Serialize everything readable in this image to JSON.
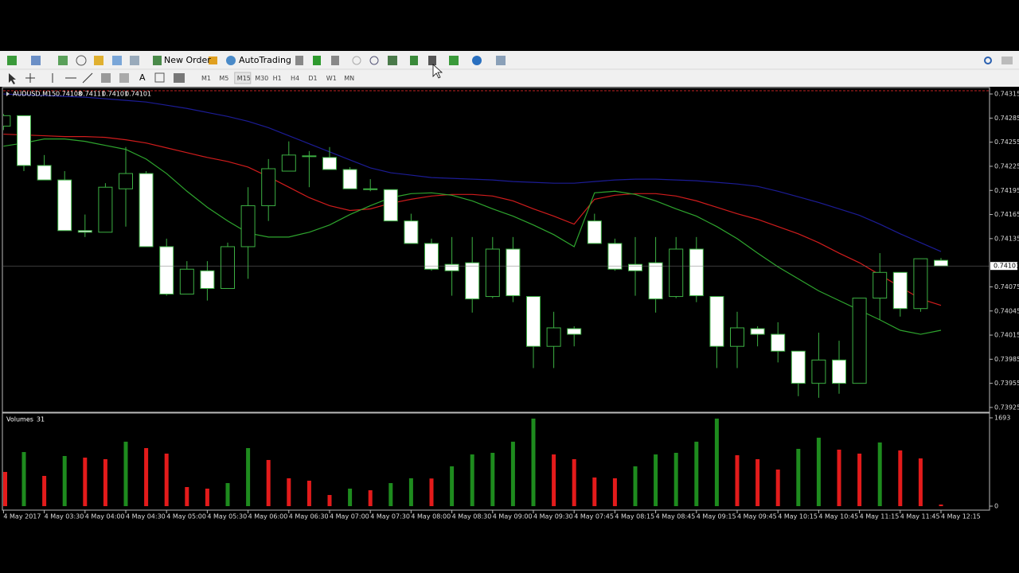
{
  "toolbar": {
    "new_order": "New Order",
    "auto_trading": "AutoTrading",
    "timeframes": [
      "M1",
      "M5",
      "M15",
      "M30",
      "H1",
      "H4",
      "D1",
      "W1",
      "MN"
    ]
  },
  "chart_data": [
    {
      "type": "candlestick",
      "symbol": "AUDUSD,M15",
      "categories": [
        "4 May 2017",
        null,
        "4 May 03:30",
        null,
        "4 May 04:00",
        null,
        "4 May 04:30",
        null,
        "4 May 05:00",
        null,
        "4 May 05:30",
        null,
        "4 May 06:00",
        null,
        "4 May 06:30",
        null,
        "4 May 07:00",
        null,
        "4 May 07:30",
        null,
        "4 May 08:00",
        null,
        "4 May 08:30",
        null,
        "4 May 09:00",
        null,
        "4 May 09:30",
        null,
        "4 May 07:45",
        null,
        "4 May 08:15",
        null,
        "4 May 08:45",
        null,
        "4 May 09:15",
        null,
        "4 May 09:45",
        null,
        "4 May 10:15",
        null,
        "4 May 10:45",
        null,
        "4 May 11:15",
        null,
        "4 May 11:45",
        null,
        "4 May 12:15"
      ],
      "open": [
        0.74275,
        0.74288,
        0.74226,
        0.74208,
        0.74145,
        0.74143,
        0.74197,
        0.74216,
        0.74125,
        0.74066,
        0.74095,
        0.74073,
        0.74125,
        0.74176,
        0.74219,
        0.74238,
        0.74236,
        0.74221,
        0.74197,
        0.74196,
        0.74157,
        0.74129,
        0.74103,
        0.74105,
        0.74063,
        0.74122,
        0.74063,
        0.74001,
        0.74023,
        0.74157,
        0.74129,
        0.74103,
        0.74105,
        0.74063,
        0.74122,
        0.74063,
        0.74001,
        0.74023,
        0.74016,
        0.73995,
        0.73955,
        0.73984,
        0.73955,
        0.74061,
        0.74093,
        0.74048,
        0.74108
      ],
      "high": [
        0.7429,
        0.74288,
        0.74239,
        0.74219,
        0.74165,
        0.74204,
        0.74249,
        0.74219,
        0.74135,
        0.74107,
        0.74107,
        0.7413,
        0.74199,
        0.74234,
        0.74256,
        0.74244,
        0.74249,
        0.74224,
        0.74209,
        0.74196,
        0.74166,
        0.74135,
        0.74137,
        0.74137,
        0.74137,
        0.74137,
        0.74063,
        0.74044,
        0.74026,
        0.74166,
        0.74135,
        0.74137,
        0.74137,
        0.74137,
        0.74137,
        0.74063,
        0.74044,
        0.74026,
        0.74031,
        0.73995,
        0.74018,
        0.74008,
        0.74061,
        0.74117,
        0.74093,
        0.7411,
        0.74111
      ],
      "low": [
        0.7427,
        0.74219,
        0.74208,
        0.74145,
        0.74137,
        0.74143,
        0.7415,
        0.74125,
        0.74064,
        0.74066,
        0.74058,
        0.74073,
        0.74085,
        0.74157,
        0.74219,
        0.74199,
        0.74221,
        0.74197,
        0.74194,
        0.74157,
        0.74129,
        0.74095,
        0.74064,
        0.74043,
        0.74061,
        0.74056,
        0.73974,
        0.73974,
        0.74001,
        0.74129,
        0.74095,
        0.74064,
        0.74043,
        0.74061,
        0.74056,
        0.73974,
        0.73974,
        0.74001,
        0.73981,
        0.73939,
        0.73937,
        0.73942,
        0.73955,
        0.74034,
        0.74038,
        0.74044,
        0.74101
      ],
      "close": [
        0.74288,
        0.74226,
        0.74208,
        0.74145,
        0.74143,
        0.74199,
        0.74216,
        0.74125,
        0.74066,
        0.74097,
        0.74073,
        0.74125,
        0.74176,
        0.74222,
        0.74239,
        0.74237,
        0.74221,
        0.74197,
        0.74196,
        0.74157,
        0.74129,
        0.74097,
        0.74095,
        0.7406,
        0.74122,
        0.74064,
        0.74001,
        0.74024,
        0.74016,
        0.74129,
        0.74097,
        0.74095,
        0.7406,
        0.74122,
        0.74064,
        0.74001,
        0.74024,
        0.74016,
        0.73995,
        0.73955,
        0.73984,
        0.73955,
        0.74061,
        0.74093,
        0.74048,
        0.7411,
        0.74101
      ],
      "up_color": "#000000",
      "down_color": "#ffffff",
      "outline_color": "#3cb043",
      "lines": [
        {
          "color": "#1c1c96",
          "values": [
            0.74315,
            0.74314,
            0.74313,
            0.74312,
            0.74311,
            0.74309,
            0.74307,
            0.74305,
            0.74301,
            0.74297,
            0.74292,
            0.74287,
            0.74281,
            0.74273,
            0.74263,
            0.74253,
            0.74243,
            0.74233,
            0.74223,
            0.74217,
            0.74214,
            0.74211,
            0.7421,
            0.74209,
            0.74208,
            0.74206,
            0.74205,
            0.74204,
            0.74204,
            0.74206,
            0.74208,
            0.74209,
            0.74209,
            0.74208,
            0.74207,
            0.74205,
            0.74203,
            0.742,
            0.74194,
            0.74187,
            0.7418,
            0.74172,
            0.74164,
            0.74153,
            0.74141,
            0.7413,
            0.74119
          ]
        },
        {
          "color": "#d01c1c",
          "values": [
            0.74265,
            0.74264,
            0.74263,
            0.74262,
            0.74262,
            0.74261,
            0.74258,
            0.74254,
            0.74248,
            0.74242,
            0.74236,
            0.74231,
            0.74224,
            0.74212,
            0.74199,
            0.74186,
            0.74176,
            0.7417,
            0.74172,
            0.74179,
            0.74184,
            0.74188,
            0.7419,
            0.7419,
            0.74188,
            0.74182,
            0.74172,
            0.74163,
            0.74153,
            0.74184,
            0.74189,
            0.74191,
            0.74191,
            0.74188,
            0.74182,
            0.74174,
            0.74166,
            0.74159,
            0.7415,
            0.74141,
            0.7413,
            0.74117,
            0.74105,
            0.7409,
            0.74075,
            0.7406,
            0.74052
          ]
        },
        {
          "color": "#2ea52e",
          "values": [
            0.7425,
            0.74254,
            0.74259,
            0.74259,
            0.74256,
            0.74251,
            0.74246,
            0.74234,
            0.74216,
            0.74194,
            0.74174,
            0.74157,
            0.74142,
            0.74137,
            0.74137,
            0.74143,
            0.74152,
            0.74165,
            0.74176,
            0.74186,
            0.74191,
            0.74192,
            0.74189,
            0.74182,
            0.74172,
            0.74163,
            0.74152,
            0.7414,
            0.74125,
            0.74192,
            0.74194,
            0.7419,
            0.74182,
            0.74172,
            0.74163,
            0.7415,
            0.74135,
            0.74117,
            0.741,
            0.74085,
            0.7407,
            0.74058,
            0.74046,
            0.74034,
            0.74021,
            0.74016,
            0.74021
          ]
        }
      ],
      "ylim": [
        0.73921,
        0.74321
      ],
      "yticks": [
        0.74315,
        0.74285,
        0.74255,
        0.74225,
        0.74195,
        0.74165,
        0.74135,
        0.74075,
        0.74045,
        0.74015,
        0.73985,
        0.73955,
        0.73925
      ]
    },
    {
      "type": "bar",
      "title": "Volumes",
      "values": [
        656,
        1037,
        580,
        961,
        930,
        900,
        1235,
        1113,
        1007,
        366,
        336,
        442,
        1113,
        885,
        534,
        488,
        214,
        336,
        305,
        442,
        534,
        530,
        763,
        991,
        1022,
        1235,
        1678,
        991,
        900,
        549,
        534,
        763,
        991,
        1022,
        1235,
        1678,
        976,
        900,
        702,
        1098,
        1312,
        1083,
        1007,
        1220,
        1068,
        915,
        31
      ],
      "up_color": "#1e8b1e",
      "down_color": "#e31b1b",
      "ylim": [
        0,
        1693
      ],
      "yticks": [
        0,
        1693
      ]
    }
  ]
}
